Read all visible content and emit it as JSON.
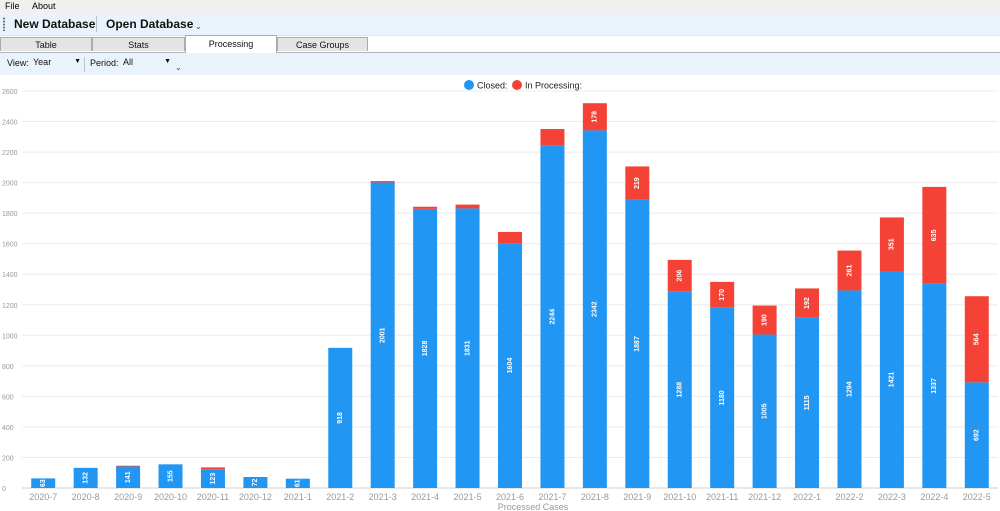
{
  "menu": [
    "File",
    "About"
  ],
  "toolbar": {
    "new_db": "New Database",
    "open_db": "Open Database",
    "overflow": "⌄"
  },
  "tabs": [
    {
      "label": "Table",
      "active": false
    },
    {
      "label": "Stats",
      "active": false
    },
    {
      "label": "Processing",
      "active": true
    },
    {
      "label": "Case Groups",
      "active": false
    }
  ],
  "filters": {
    "view_label": "View:",
    "view_value": "Year",
    "period_label": "Period:",
    "period_value": "All",
    "overflow": "⌄"
  },
  "colors": {
    "closed": "#2196f3",
    "processing": "#f44336",
    "grid": "#ececec",
    "axis_text": "#999999"
  },
  "chart_data": {
    "type": "bar",
    "stacked": true,
    "xlabel": "Processed Cases",
    "ylabel": "",
    "ylim": [
      0,
      2600
    ],
    "yticks": [
      0,
      200,
      400,
      600,
      800,
      1000,
      1200,
      1400,
      1600,
      1800,
      2000,
      2200,
      2400,
      2600
    ],
    "legend_position": "top-center",
    "grid": true,
    "categories": [
      "2020-7",
      "2020-8",
      "2020-9",
      "2020-10",
      "2020-11",
      "2020-12",
      "2021-1",
      "2021-2",
      "2021-3",
      "2021-4",
      "2021-5",
      "2021-6",
      "2021-7",
      "2021-8",
      "2021-9",
      "2021-10",
      "2021-11",
      "2021-12",
      "2022-1",
      "2022-2",
      "2022-3",
      "2022-4",
      "2022-5"
    ],
    "series": [
      {
        "name": "Closed:",
        "values": [
          63,
          132,
          141,
          155,
          123,
          72,
          61,
          918,
          2001,
          1828,
          1831,
          1604,
          2244,
          2342,
          1887,
          1288,
          1180,
          1005,
          1115,
          1294,
          1421,
          1337,
          692
        ]
      },
      {
        "name": "In Processing:",
        "values": [
          0,
          0,
          5,
          0,
          12,
          0,
          0,
          0,
          9,
          14,
          25,
          73,
          107,
          178,
          219,
          206,
          170,
          190,
          192,
          261,
          351,
          635,
          564
        ]
      }
    ]
  }
}
